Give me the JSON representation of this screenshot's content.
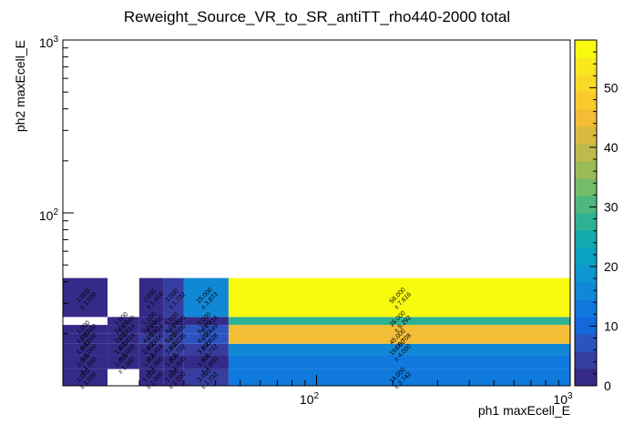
{
  "chart_data": {
    "type": "heatmap",
    "title": "Reweight_Source_VR_to_SR_antiTT_rho440-2000 total",
    "xlabel": "ph1 maxEcell_E",
    "ylabel": "ph2 maxEcell_E",
    "x_scale": "log",
    "y_scale": "log",
    "xlim": [
      10,
      1000
    ],
    "ylim": [
      10,
      1000
    ],
    "x_tick_labels": [
      "10^2",
      "10^3"
    ],
    "y_tick_labels": [
      "10^2",
      "10^3"
    ],
    "x_edges": [
      10,
      15,
      20,
      25,
      30,
      45,
      1000
    ],
    "y_edges": [
      10,
      12.5,
      15,
      17.5,
      20,
      22.5,
      25,
      42,
      1000
    ],
    "cells": [
      {
        "xi": 0,
        "yi": 0,
        "value": 1,
        "error": 1
      },
      {
        "xi": 2,
        "yi": 0,
        "value": 1,
        "error": 1
      },
      {
        "xi": 3,
        "yi": 0,
        "value": 1,
        "error": 1
      },
      {
        "xi": 4,
        "yi": 0,
        "value": 3,
        "error": 1.732
      },
      {
        "xi": 5,
        "yi": 0,
        "value": 14,
        "error": 3.742
      },
      {
        "xi": 0,
        "yi": 1,
        "value": 1,
        "error": 1
      },
      {
        "xi": 1,
        "yi": 1,
        "value": 1,
        "error": 1
      },
      {
        "xi": 2,
        "yi": 1,
        "value": 1,
        "error": 1
      },
      {
        "xi": 3,
        "yi": 1,
        "value": 1,
        "error": 1
      },
      {
        "xi": 4,
        "yi": 1,
        "value": 1,
        "error": 1
      },
      {
        "xi": 5,
        "yi": 1,
        "value": 14,
        "error": 3.742
      },
      {
        "xi": 0,
        "yi": 2,
        "value": 1,
        "error": 1
      },
      {
        "xi": 1,
        "yi": 2,
        "value": 1,
        "error": 1
      },
      {
        "xi": 2,
        "yi": 2,
        "value": 2,
        "error": 1.414
      },
      {
        "xi": 3,
        "yi": 2,
        "value": 3,
        "error": 1.732
      },
      {
        "xi": 4,
        "yi": 2,
        "value": 3,
        "error": 1.732
      },
      {
        "xi": 5,
        "yi": 2,
        "value": 16,
        "error": 4
      },
      {
        "xi": 0,
        "yi": 3,
        "value": 1,
        "error": 1
      },
      {
        "xi": 1,
        "yi": 3,
        "value": 2,
        "error": 1.414
      },
      {
        "xi": 2,
        "yi": 3,
        "value": 4,
        "error": 2
      },
      {
        "xi": 3,
        "yi": 3,
        "value": 5,
        "error": 2.236
      },
      {
        "xi": 4,
        "yi": 3,
        "value": 8,
        "error": 2.828
      },
      {
        "xi": 5,
        "yi": 3,
        "value": 45,
        "error": 6.708
      },
      {
        "xi": 0,
        "yi": 4,
        "value": 1,
        "error": 1
      },
      {
        "xi": 1,
        "yi": 4,
        "value": 2,
        "error": 1.414
      },
      {
        "xi": 2,
        "yi": 4,
        "value": 2,
        "error": 1.414
      },
      {
        "xi": 3,
        "yi": 4,
        "value": 4,
        "error": 2
      },
      {
        "xi": 4,
        "yi": 4,
        "value": 6,
        "error": 2.449
      },
      {
        "xi": 5,
        "yi": 4,
        "value": 45,
        "error": 6.708
      },
      {
        "xi": 1,
        "yi": 5,
        "value": 1,
        "error": 1
      },
      {
        "xi": 2,
        "yi": 5,
        "value": 1,
        "error": 1
      },
      {
        "xi": 3,
        "yi": 5,
        "value": 1,
        "error": 1
      },
      {
        "xi": 4,
        "yi": 5,
        "value": 2,
        "error": 1.414
      },
      {
        "xi": 5,
        "yi": 5,
        "value": 28,
        "error": 5.292
      },
      {
        "xi": 0,
        "yi": 6,
        "value": 1,
        "error": 1
      },
      {
        "xi": 2,
        "yi": 6,
        "value": 2,
        "error": 1.414
      },
      {
        "xi": 3,
        "yi": 6,
        "value": 3,
        "error": 1.732
      },
      {
        "xi": 4,
        "yi": 6,
        "value": 15,
        "error": 3.873
      },
      {
        "xi": 5,
        "yi": 6,
        "value": 58,
        "error": 7.616
      }
    ],
    "hidden_labels": [
      {
        "xi": 5,
        "yi": 1
      },
      {
        "xi": 5,
        "yi": 4
      }
    ],
    "zlim": [
      0,
      58
    ],
    "z_ticks": [
      0,
      10,
      20,
      30,
      40,
      50
    ],
    "palette": [
      "#352a87",
      "#363e9f",
      "#2c54c1",
      "#1468da",
      "#0f79dd",
      "#1188d6",
      "#0e96ce",
      "#09a1c4",
      "#13aaae",
      "#2eb295",
      "#4eb880",
      "#75bc69",
      "#9abc58",
      "#bcbb4b",
      "#d9ba40",
      "#f3bd36",
      "#fbc92f",
      "#f7d927",
      "#f8e81d",
      "#f9fb0e"
    ]
  }
}
